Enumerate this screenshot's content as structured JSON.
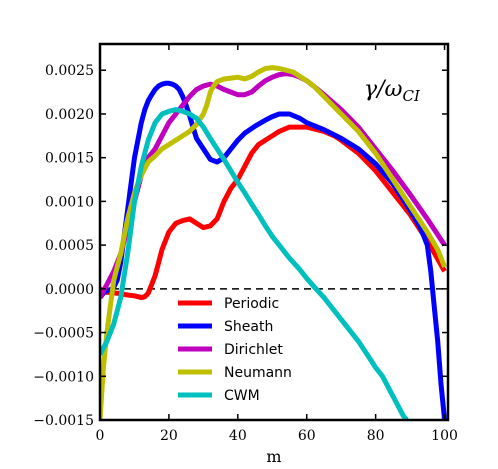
{
  "chart_data": {
    "type": "line",
    "xlabel": "m",
    "ylabel": "",
    "xlim": [
      0,
      101
    ],
    "ylim": [
      -0.0015,
      0.0028
    ],
    "x_ticks": [
      0,
      20,
      40,
      60,
      80,
      100
    ],
    "x_tick_labels": [
      "0",
      "20",
      "40",
      "60",
      "80",
      "100"
    ],
    "y_ticks": [
      -0.0015,
      -0.001,
      -0.0005,
      0,
      0.0005,
      0.001,
      0.0015,
      0.002,
      0.0025
    ],
    "y_tick_labels": [
      "−0.0015",
      "−0.0010",
      "−0.0005",
      "0.0000",
      "0.0005",
      "0.0010",
      "0.0015",
      "0.0020",
      "0.0025"
    ],
    "grid": false,
    "legend_position": "lower-center",
    "annotation": {
      "main": "γ/ω",
      "sub": "CI"
    },
    "reference_line": {
      "y": 0,
      "style": "dashed",
      "color": "#000000"
    },
    "series": [
      {
        "name": "Periodic",
        "color": "#ff0000",
        "x": [
          0,
          2,
          5,
          8,
          10,
          12,
          13,
          14,
          15,
          16,
          17,
          18,
          19,
          20,
          22,
          24,
          26,
          28,
          30,
          32,
          34,
          36,
          38,
          40,
          42,
          44,
          46,
          48,
          50,
          52,
          55,
          58,
          60,
          62,
          65,
          68,
          70,
          75,
          80,
          85,
          90,
          95,
          100
        ],
        "y": [
          0.0,
          -4e-05,
          -5e-05,
          -7e-05,
          -8e-05,
          -0.0001,
          -9e-05,
          -5e-05,
          5e-05,
          0.00015,
          0.0003,
          0.00045,
          0.00055,
          0.00065,
          0.00075,
          0.00078,
          0.0008,
          0.00075,
          0.0007,
          0.00072,
          0.0008,
          0.001,
          0.00115,
          0.00125,
          0.0014,
          0.00155,
          0.00165,
          0.0017,
          0.00175,
          0.0018,
          0.00185,
          0.00185,
          0.00185,
          0.00183,
          0.0018,
          0.00175,
          0.0017,
          0.00155,
          0.00135,
          0.0011,
          0.00085,
          0.00055,
          0.0002
        ]
      },
      {
        "name": "Sheath",
        "color": "#0000ff",
        "x": [
          0,
          1,
          2,
          3,
          4,
          5,
          6,
          7,
          8,
          9,
          10,
          11,
          12,
          13,
          14,
          15,
          16,
          17,
          18,
          19,
          20,
          21,
          22,
          23,
          24,
          25,
          26,
          27,
          28,
          30,
          32,
          34,
          36,
          38,
          40,
          42,
          45,
          48,
          50,
          52,
          55,
          58,
          60,
          65,
          70,
          75,
          80,
          85,
          90,
          93,
          95,
          96,
          97,
          98,
          99,
          100
        ],
        "y": [
          -0.0001,
          -5e-05,
          -2e-05,
          -1e-05,
          2e-05,
          0.0001,
          0.0003,
          0.0006,
          0.0009,
          0.0012,
          0.0015,
          0.0017,
          0.0019,
          0.00205,
          0.00215,
          0.00222,
          0.00228,
          0.00232,
          0.00234,
          0.00235,
          0.00235,
          0.00234,
          0.00232,
          0.00228,
          0.0022,
          0.0021,
          0.00198,
          0.00185,
          0.00172,
          0.0016,
          0.00148,
          0.00145,
          0.0015,
          0.0016,
          0.0017,
          0.00178,
          0.00186,
          0.00193,
          0.00197,
          0.002,
          0.002,
          0.00195,
          0.0019,
          0.00182,
          0.00172,
          0.0016,
          0.00143,
          0.0012,
          0.0009,
          0.0007,
          0.0005,
          0.0002,
          -0.0002,
          -0.0006,
          -0.0011,
          -0.0015
        ]
      },
      {
        "name": "Dirichlet",
        "color": "#bf00bf",
        "x": [
          0,
          2,
          4,
          6,
          8,
          10,
          12,
          14,
          16,
          18,
          20,
          22,
          24,
          26,
          28,
          30,
          32,
          34,
          36,
          38,
          40,
          42,
          44,
          46,
          48,
          50,
          52,
          54,
          56,
          58,
          60,
          62,
          65,
          70,
          75,
          80,
          85,
          90,
          95,
          100
        ],
        "y": [
          -0.0001,
          5e-05,
          0.0002,
          0.0004,
          0.0007,
          0.001,
          0.0013,
          0.0015,
          0.0016,
          0.00175,
          0.0019,
          0.002,
          0.0021,
          0.0022,
          0.00228,
          0.00232,
          0.00234,
          0.00232,
          0.00228,
          0.00225,
          0.00222,
          0.00222,
          0.00225,
          0.00232,
          0.00238,
          0.00242,
          0.00245,
          0.00246,
          0.00245,
          0.00242,
          0.00238,
          0.00232,
          0.00222,
          0.00205,
          0.00185,
          0.0016,
          0.00135,
          0.00108,
          0.0008,
          0.0005
        ]
      },
      {
        "name": "Neumann",
        "color": "#bfbf00",
        "x": [
          0,
          1,
          2,
          3,
          4,
          6,
          8,
          10,
          12,
          14,
          16,
          18,
          20,
          22,
          24,
          26,
          28,
          30,
          31,
          32,
          33,
          34,
          36,
          38,
          40,
          42,
          44,
          46,
          48,
          50,
          52,
          54,
          56,
          58,
          60,
          62,
          65,
          70,
          75,
          80,
          85,
          90,
          95,
          98,
          100
        ],
        "y": [
          -0.0015,
          -0.0009,
          -0.0005,
          -0.0002,
          0.0001,
          0.0004,
          0.0008,
          0.0011,
          0.0013,
          0.00145,
          0.00152,
          0.0016,
          0.00165,
          0.0017,
          0.00175,
          0.0018,
          0.00188,
          0.002,
          0.0021,
          0.00225,
          0.00232,
          0.00237,
          0.0024,
          0.00241,
          0.00242,
          0.0024,
          0.00243,
          0.00248,
          0.00252,
          0.00253,
          0.00252,
          0.0025,
          0.00248,
          0.00243,
          0.00238,
          0.00232,
          0.0022,
          0.002,
          0.0018,
          0.00155,
          0.00125,
          0.00095,
          0.00065,
          0.00045,
          0.00025
        ]
      },
      {
        "name": "CWM",
        "color": "#00bfbf",
        "x": [
          0,
          2,
          4,
          6,
          8,
          10,
          12,
          14,
          16,
          18,
          20,
          22,
          24,
          26,
          28,
          30,
          32,
          34,
          36,
          38,
          40,
          42,
          44,
          46,
          48,
          50,
          52,
          55,
          58,
          60,
          62,
          65,
          68,
          70,
          72,
          75,
          78,
          80,
          82,
          84,
          86,
          88,
          89
        ],
        "y": [
          -0.00075,
          -0.0006,
          -0.0004,
          -0.0001,
          0.0004,
          0.001,
          0.0014,
          0.0017,
          0.0019,
          0.002,
          0.00203,
          0.00205,
          0.00203,
          0.002,
          0.00195,
          0.00185,
          0.00172,
          0.0016,
          0.00148,
          0.00135,
          0.00122,
          0.0011,
          0.00097,
          0.00085,
          0.00072,
          0.0006,
          0.0005,
          0.00035,
          0.00022,
          0.00012,
          3e-05,
          -0.0001,
          -0.00025,
          -0.00035,
          -0.00045,
          -0.0006,
          -0.00078,
          -0.0009,
          -0.001,
          -0.00115,
          -0.0013,
          -0.00145,
          -0.0015
        ]
      }
    ]
  }
}
